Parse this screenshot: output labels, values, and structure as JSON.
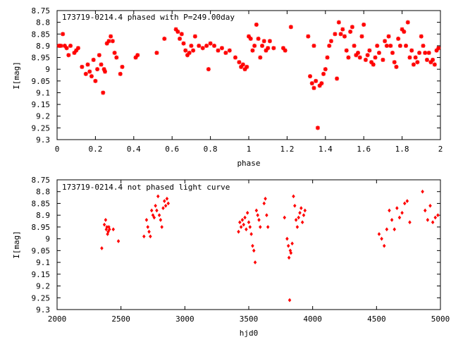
{
  "chart_data": [
    {
      "type": "scatter",
      "title": "173719-0214.4 phased with P=249.00day",
      "xlabel": "phase",
      "ylabel": "I[mag]",
      "xlim": [
        0,
        2
      ],
      "ylim": [
        8.75,
        9.3
      ],
      "y_inverted": true,
      "grid": false,
      "marker": "star",
      "color": "#ff0000",
      "x_ticks": [
        "0",
        "0.2",
        "0.4",
        "0.6",
        "0.8",
        "1",
        "1.2",
        "1.4",
        "1.6",
        "1.8",
        "2"
      ],
      "y_ticks": [
        "8.75",
        "8.8",
        "8.85",
        "8.9",
        "8.95",
        "9",
        "9.05",
        "9.1",
        "9.15",
        "9.2",
        "9.25",
        "9.3"
      ],
      "points": [
        [
          0.01,
          8.9
        ],
        [
          0.02,
          8.9
        ],
        [
          0.03,
          8.85
        ],
        [
          0.04,
          8.9
        ],
        [
          0.05,
          8.91
        ],
        [
          0.06,
          8.94
        ],
        [
          0.07,
          8.9
        ],
        [
          0.09,
          8.93
        ],
        [
          0.1,
          8.92
        ],
        [
          0.11,
          8.91
        ],
        [
          0.13,
          8.99
        ],
        [
          0.15,
          9.02
        ],
        [
          0.16,
          8.98
        ],
        [
          0.17,
          9.01
        ],
        [
          0.18,
          9.03
        ],
        [
          0.19,
          8.96
        ],
        [
          0.2,
          9.05
        ],
        [
          0.21,
          9.0
        ],
        [
          0.22,
          8.94
        ],
        [
          0.23,
          8.98
        ],
        [
          0.24,
          9.1
        ],
        [
          0.245,
          9.0
        ],
        [
          0.25,
          9.01
        ],
        [
          0.26,
          8.89
        ],
        [
          0.27,
          8.88
        ],
        [
          0.28,
          8.86
        ],
        [
          0.29,
          8.88
        ],
        [
          0.3,
          8.93
        ],
        [
          0.31,
          8.95
        ],
        [
          0.33,
          9.02
        ],
        [
          0.34,
          8.99
        ],
        [
          0.41,
          8.95
        ],
        [
          0.42,
          8.94
        ],
        [
          0.52,
          8.93
        ],
        [
          0.56,
          8.87
        ],
        [
          0.62,
          8.83
        ],
        [
          0.63,
          8.84
        ],
        [
          0.64,
          8.87
        ],
        [
          0.65,
          8.85
        ],
        [
          0.66,
          8.89
        ],
        [
          0.67,
          8.92
        ],
        [
          0.68,
          8.94
        ],
        [
          0.69,
          8.93
        ],
        [
          0.7,
          8.9
        ],
        [
          0.71,
          8.92
        ],
        [
          0.72,
          8.86
        ],
        [
          0.74,
          8.9
        ],
        [
          0.76,
          8.91
        ],
        [
          0.78,
          8.9
        ],
        [
          0.79,
          9.0
        ],
        [
          0.8,
          8.89
        ],
        [
          0.82,
          8.9
        ],
        [
          0.84,
          8.92
        ],
        [
          0.86,
          8.91
        ],
        [
          0.88,
          8.93
        ],
        [
          0.9,
          8.92
        ],
        [
          0.93,
          8.95
        ],
        [
          0.95,
          8.97
        ],
        [
          0.96,
          8.99
        ],
        [
          0.97,
          8.98
        ],
        [
          0.98,
          9.0
        ],
        [
          0.99,
          8.99
        ],
        [
          1.0,
          8.86
        ],
        [
          1.01,
          8.87
        ],
        [
          1.02,
          8.92
        ],
        [
          1.03,
          8.9
        ],
        [
          1.04,
          8.81
        ],
        [
          1.05,
          8.87
        ],
        [
          1.06,
          8.95
        ],
        [
          1.07,
          8.9
        ],
        [
          1.08,
          8.88
        ],
        [
          1.09,
          8.92
        ],
        [
          1.1,
          8.91
        ],
        [
          1.11,
          8.88
        ],
        [
          1.13,
          8.91
        ],
        [
          1.18,
          8.91
        ],
        [
          1.19,
          8.92
        ],
        [
          1.22,
          8.82
        ],
        [
          1.31,
          8.86
        ],
        [
          1.32,
          9.03
        ],
        [
          1.33,
          9.06
        ],
        [
          1.34,
          9.08
        ],
        [
          1.34,
          8.9
        ],
        [
          1.35,
          9.05
        ],
        [
          1.36,
          9.25
        ],
        [
          1.37,
          9.07
        ],
        [
          1.38,
          9.06
        ],
        [
          1.39,
          9.02
        ],
        [
          1.4,
          9.0
        ],
        [
          1.41,
          8.95
        ],
        [
          1.42,
          8.9
        ],
        [
          1.43,
          8.88
        ],
        [
          1.45,
          8.85
        ],
        [
          1.46,
          9.04
        ],
        [
          1.47,
          8.8
        ],
        [
          1.48,
          8.85
        ],
        [
          1.49,
          8.83
        ],
        [
          1.5,
          8.86
        ],
        [
          1.51,
          8.92
        ],
        [
          1.52,
          8.95
        ],
        [
          1.53,
          8.84
        ],
        [
          1.54,
          8.82
        ],
        [
          1.55,
          8.9
        ],
        [
          1.56,
          8.94
        ],
        [
          1.57,
          8.93
        ],
        [
          1.58,
          8.95
        ],
        [
          1.59,
          8.86
        ],
        [
          1.6,
          8.81
        ],
        [
          1.61,
          8.96
        ],
        [
          1.62,
          8.94
        ],
        [
          1.63,
          8.92
        ],
        [
          1.64,
          8.97
        ],
        [
          1.65,
          8.98
        ],
        [
          1.66,
          8.95
        ],
        [
          1.67,
          8.9
        ],
        [
          1.68,
          8.93
        ],
        [
          1.7,
          8.96
        ],
        [
          1.71,
          8.88
        ],
        [
          1.72,
          8.9
        ],
        [
          1.73,
          8.86
        ],
        [
          1.74,
          8.9
        ],
        [
          1.75,
          8.93
        ],
        [
          1.76,
          8.97
        ],
        [
          1.77,
          8.99
        ],
        [
          1.78,
          8.87
        ],
        [
          1.79,
          8.9
        ],
        [
          1.8,
          8.83
        ],
        [
          1.81,
          8.84
        ],
        [
          1.82,
          8.9
        ],
        [
          1.83,
          8.8
        ],
        [
          1.84,
          8.95
        ],
        [
          1.85,
          8.92
        ],
        [
          1.86,
          8.98
        ],
        [
          1.87,
          8.95
        ],
        [
          1.88,
          8.97
        ],
        [
          1.89,
          8.93
        ],
        [
          1.9,
          8.86
        ],
        [
          1.91,
          8.9
        ],
        [
          1.92,
          8.93
        ],
        [
          1.93,
          8.96
        ],
        [
          1.94,
          8.93
        ],
        [
          1.95,
          8.97
        ],
        [
          1.96,
          8.96
        ],
        [
          1.97,
          8.98
        ],
        [
          1.98,
          8.92
        ],
        [
          1.99,
          8.91
        ]
      ]
    },
    {
      "type": "scatter",
      "title": "173719-0214.4 not phased light curve",
      "xlabel": "hjd0",
      "ylabel": "I[mag]",
      "xlim": [
        2000,
        5000
      ],
      "ylim": [
        8.75,
        9.3
      ],
      "y_inverted": true,
      "grid": false,
      "marker": "diamond",
      "color": "#ff0000",
      "x_ticks": [
        "2000",
        "2500",
        "3000",
        "3500",
        "4000",
        "4500",
        "5000"
      ],
      "y_ticks": [
        "8.75",
        "8.8",
        "8.85",
        "8.9",
        "8.95",
        "9",
        "9.05",
        "9.1",
        "9.15",
        "9.2",
        "9.25",
        "9.3"
      ],
      "points": [
        [
          2350,
          9.04
        ],
        [
          2370,
          8.94
        ],
        [
          2380,
          8.92
        ],
        [
          2385,
          8.96
        ],
        [
          2390,
          8.95
        ],
        [
          2395,
          8.98
        ],
        [
          2400,
          8.97
        ],
        [
          2405,
          8.95
        ],
        [
          2410,
          8.96
        ],
        [
          2440,
          8.96
        ],
        [
          2480,
          9.01
        ],
        [
          2680,
          8.99
        ],
        [
          2700,
          8.92
        ],
        [
          2710,
          8.95
        ],
        [
          2720,
          8.97
        ],
        [
          2730,
          8.99
        ],
        [
          2740,
          8.88
        ],
        [
          2750,
          8.9
        ],
        [
          2760,
          8.91
        ],
        [
          2770,
          8.86
        ],
        [
          2780,
          8.88
        ],
        [
          2790,
          8.82
        ],
        [
          2800,
          8.9
        ],
        [
          2810,
          8.92
        ],
        [
          2820,
          8.95
        ],
        [
          2830,
          8.87
        ],
        [
          2840,
          8.84
        ],
        [
          2850,
          8.86
        ],
        [
          2860,
          8.83
        ],
        [
          2870,
          8.85
        ],
        [
          3420,
          8.97
        ],
        [
          3430,
          8.93
        ],
        [
          3440,
          8.95
        ],
        [
          3450,
          8.92
        ],
        [
          3460,
          8.94
        ],
        [
          3470,
          8.91
        ],
        [
          3480,
          8.96
        ],
        [
          3490,
          8.89
        ],
        [
          3500,
          8.93
        ],
        [
          3510,
          8.95
        ],
        [
          3520,
          8.98
        ],
        [
          3530,
          9.03
        ],
        [
          3540,
          9.05
        ],
        [
          3550,
          9.1
        ],
        [
          3560,
          8.88
        ],
        [
          3570,
          8.9
        ],
        [
          3580,
          8.92
        ],
        [
          3590,
          8.95
        ],
        [
          3620,
          8.85
        ],
        [
          3630,
          8.83
        ],
        [
          3640,
          8.9
        ],
        [
          3650,
          8.95
        ],
        [
          3780,
          8.91
        ],
        [
          3800,
          9.0
        ],
        [
          3810,
          9.03
        ],
        [
          3815,
          9.08
        ],
        [
          3820,
          9.26
        ],
        [
          3825,
          9.05
        ],
        [
          3830,
          9.06
        ],
        [
          3840,
          9.02
        ],
        [
          3850,
          8.82
        ],
        [
          3860,
          8.86
        ],
        [
          3870,
          8.92
        ],
        [
          3880,
          8.95
        ],
        [
          3890,
          8.91
        ],
        [
          3900,
          8.89
        ],
        [
          3910,
          8.87
        ],
        [
          3920,
          8.93
        ],
        [
          3930,
          8.9
        ],
        [
          3940,
          8.88
        ],
        [
          4520,
          8.98
        ],
        [
          4540,
          9.0
        ],
        [
          4560,
          9.03
        ],
        [
          4580,
          8.96
        ],
        [
          4600,
          8.88
        ],
        [
          4620,
          8.92
        ],
        [
          4640,
          8.96
        ],
        [
          4660,
          8.87
        ],
        [
          4680,
          8.91
        ],
        [
          4700,
          8.89
        ],
        [
          4720,
          8.85
        ],
        [
          4740,
          8.84
        ],
        [
          4760,
          8.93
        ],
        [
          4860,
          8.8
        ],
        [
          4880,
          8.88
        ],
        [
          4900,
          8.92
        ],
        [
          4920,
          8.86
        ],
        [
          4940,
          8.93
        ],
        [
          4960,
          8.91
        ],
        [
          4980,
          8.9
        ]
      ]
    }
  ]
}
